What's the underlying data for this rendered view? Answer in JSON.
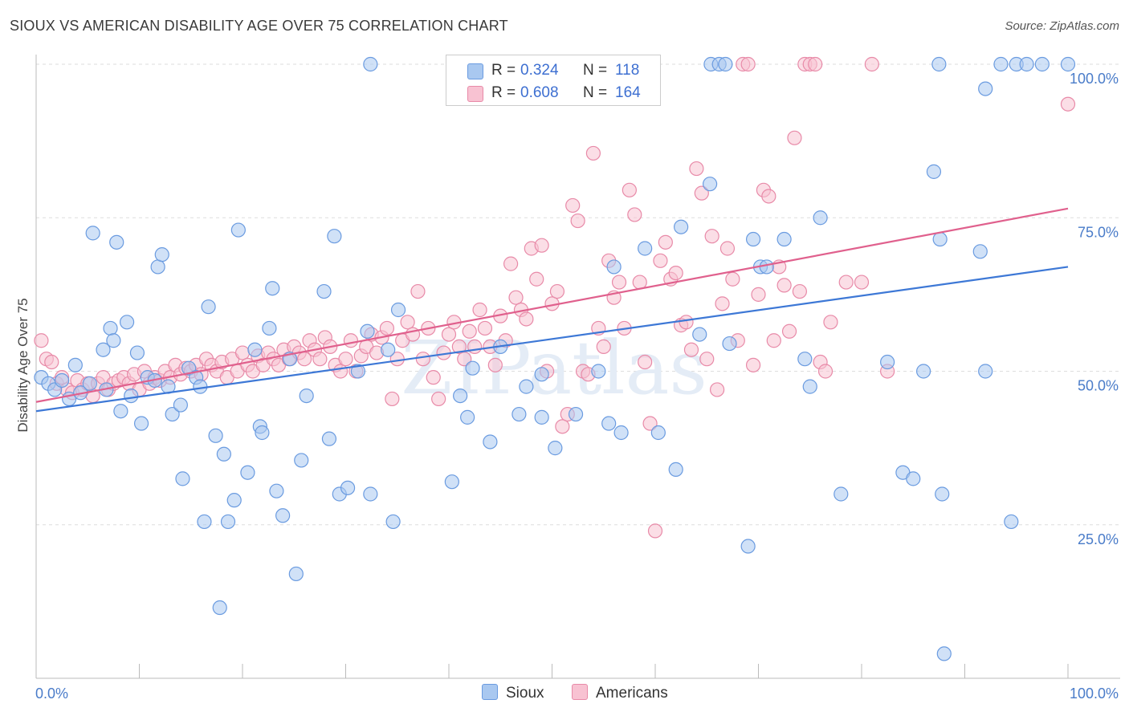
{
  "title": "SIOUX VS AMERICAN DISABILITY AGE OVER 75 CORRELATION CHART",
  "source": "Source: ZipAtlas.com",
  "watermark": "ZIPatlas",
  "legend": {
    "rows": [
      {
        "r_label": "R =",
        "r_value": "0.324",
        "n_label": "N =",
        "n_value": "118",
        "color": "#a9c8f0",
        "border": "#6a9be0"
      },
      {
        "r_label": "R =",
        "r_value": "0.608",
        "n_label": "N =",
        "n_value": "164",
        "color": "#f8c2d2",
        "border": "#e88aa8"
      }
    ],
    "bottom": [
      {
        "name": "Sioux",
        "color": "#a9c8f0",
        "border": "#6a9be0"
      },
      {
        "name": "Americans",
        "color": "#f8c2d2",
        "border": "#e88aa8"
      }
    ]
  },
  "chart_data": {
    "type": "scatter",
    "title": "SIOUX VS AMERICAN DISABILITY AGE OVER 75 CORRELATION CHART",
    "xlabel": "",
    "ylabel": "Disability Age Over 75",
    "xlim": [
      0,
      100
    ],
    "ylim": [
      0,
      100
    ],
    "x_tick_labels": [
      "0.0%",
      "100.0%"
    ],
    "y_tick_labels": [
      "25.0%",
      "50.0%",
      "75.0%",
      "100.0%"
    ],
    "y_ticks": [
      25,
      50,
      75,
      100
    ],
    "grid": true,
    "legend_position": "top-center",
    "series": [
      {
        "name": "Sioux",
        "color": "#6a9be0",
        "fill": "#a9c8f0",
        "trend": {
          "x": [
            0,
            100
          ],
          "y": [
            43.5,
            67.0
          ],
          "color": "#3d78d6"
        },
        "points": [
          [
            0.5,
            49
          ],
          [
            1.2,
            48
          ],
          [
            1.8,
            47
          ],
          [
            2.5,
            48.5
          ],
          [
            3.2,
            45.5
          ],
          [
            3.8,
            51
          ],
          [
            4.3,
            46.5
          ],
          [
            5.2,
            48
          ],
          [
            5.5,
            72.5
          ],
          [
            6.5,
            53.5
          ],
          [
            6.8,
            47
          ],
          [
            7.2,
            57
          ],
          [
            7.5,
            55
          ],
          [
            7.8,
            71
          ],
          [
            8.2,
            43.5
          ],
          [
            8.8,
            58
          ],
          [
            9.2,
            46
          ],
          [
            9.8,
            53
          ],
          [
            10.2,
            41.5
          ],
          [
            10.8,
            49
          ],
          [
            11.5,
            48.5
          ],
          [
            11.8,
            67
          ],
          [
            12.2,
            69
          ],
          [
            12.8,
            47.5
          ],
          [
            13.2,
            43
          ],
          [
            14.0,
            44.5
          ],
          [
            14.2,
            32.5
          ],
          [
            14.8,
            50.5
          ],
          [
            15.5,
            49
          ],
          [
            15.9,
            47.5
          ],
          [
            16.3,
            25.5
          ],
          [
            16.7,
            60.5
          ],
          [
            17.4,
            39.5
          ],
          [
            17.8,
            11.5
          ],
          [
            18.2,
            36.5
          ],
          [
            18.6,
            25.5
          ],
          [
            19.2,
            29
          ],
          [
            19.6,
            73
          ],
          [
            20.5,
            33.5
          ],
          [
            21.2,
            53.5
          ],
          [
            21.7,
            41
          ],
          [
            21.9,
            40
          ],
          [
            22.6,
            57
          ],
          [
            22.9,
            63.5
          ],
          [
            23.3,
            30.5
          ],
          [
            23.9,
            26.5
          ],
          [
            24.6,
            52
          ],
          [
            25.2,
            17
          ],
          [
            25.7,
            35.5
          ],
          [
            26.2,
            46
          ],
          [
            27.9,
            63
          ],
          [
            28.4,
            39
          ],
          [
            28.9,
            72
          ],
          [
            29.4,
            30
          ],
          [
            30.2,
            31
          ],
          [
            31.2,
            50
          ],
          [
            32.1,
            56.5
          ],
          [
            32.4,
            30
          ],
          [
            32.4,
            100
          ],
          [
            34.1,
            53.5
          ],
          [
            34.6,
            25.5
          ],
          [
            35.1,
            60
          ],
          [
            40.3,
            32
          ],
          [
            41.1,
            46
          ],
          [
            41.8,
            42.5
          ],
          [
            42.3,
            50.5
          ],
          [
            44.0,
            38.5
          ],
          [
            45.0,
            54
          ],
          [
            46.8,
            43
          ],
          [
            47.5,
            47.5
          ],
          [
            49.0,
            42.5
          ],
          [
            49.0,
            49.5
          ],
          [
            50.3,
            37.5
          ],
          [
            52.3,
            43
          ],
          [
            54.5,
            50
          ],
          [
            55.5,
            41.5
          ],
          [
            56.0,
            67
          ],
          [
            56.7,
            40
          ],
          [
            59.0,
            70
          ],
          [
            60.3,
            40
          ],
          [
            62.0,
            34
          ],
          [
            62.5,
            73.5
          ],
          [
            64.3,
            56
          ],
          [
            65.3,
            80.5
          ],
          [
            65.4,
            100
          ],
          [
            66.2,
            100
          ],
          [
            66.8,
            100
          ],
          [
            67.2,
            54.5
          ],
          [
            69.0,
            21.5
          ],
          [
            69.5,
            71.5
          ],
          [
            70.2,
            67
          ],
          [
            70.8,
            67
          ],
          [
            72.5,
            71.5
          ],
          [
            74.5,
            52
          ],
          [
            75.0,
            47.5
          ],
          [
            76.0,
            75
          ],
          [
            78.0,
            30
          ],
          [
            82.5,
            51.5
          ],
          [
            84.0,
            33.5
          ],
          [
            85.0,
            32.5
          ],
          [
            86.0,
            50
          ],
          [
            87.0,
            82.5
          ],
          [
            87.5,
            100
          ],
          [
            87.6,
            71.5
          ],
          [
            87.8,
            30
          ],
          [
            88.0,
            4
          ],
          [
            91.5,
            69.5
          ],
          [
            92.0,
            96
          ],
          [
            92.0,
            50
          ],
          [
            93.5,
            100
          ],
          [
            94.5,
            25.5
          ],
          [
            95.0,
            100
          ],
          [
            96.0,
            100
          ],
          [
            97.5,
            100
          ],
          [
            100.0,
            100
          ]
        ]
      },
      {
        "name": "Americans",
        "color": "#e88aa8",
        "fill": "#f8c2d2",
        "trend": {
          "x": [
            0,
            100
          ],
          "y": [
            45.0,
            76.5
          ],
          "color": "#e0608d"
        },
        "points": [
          [
            0.5,
            55
          ],
          [
            1.0,
            52
          ],
          [
            1.5,
            51.5
          ],
          [
            2.0,
            48
          ],
          [
            2.5,
            49
          ],
          [
            3.0,
            47
          ],
          [
            3.5,
            46.5
          ],
          [
            4.0,
            48.5
          ],
          [
            4.5,
            47
          ],
          [
            5.0,
            48
          ],
          [
            5.5,
            46
          ],
          [
            6.0,
            48
          ],
          [
            6.5,
            49
          ],
          [
            7.0,
            47
          ],
          [
            7.5,
            48
          ],
          [
            8.0,
            48.5
          ],
          [
            8.5,
            49
          ],
          [
            9.0,
            48
          ],
          [
            9.5,
            49.5
          ],
          [
            10.0,
            47
          ],
          [
            10.5,
            50
          ],
          [
            11.0,
            48
          ],
          [
            11.5,
            49
          ],
          [
            12.0,
            48.5
          ],
          [
            12.5,
            50
          ],
          [
            13.0,
            49
          ],
          [
            13.5,
            51
          ],
          [
            14.0,
            49.5
          ],
          [
            14.5,
            50.5
          ],
          [
            15.0,
            50
          ],
          [
            15.5,
            51
          ],
          [
            16.0,
            49.5
          ],
          [
            16.5,
            52
          ],
          [
            17.0,
            51
          ],
          [
            17.5,
            50
          ],
          [
            18.0,
            51.5
          ],
          [
            18.5,
            49
          ],
          [
            19.0,
            52
          ],
          [
            19.5,
            50
          ],
          [
            20.0,
            53
          ],
          [
            20.5,
            51
          ],
          [
            21.0,
            50
          ],
          [
            21.5,
            52.5
          ],
          [
            22.0,
            51
          ],
          [
            22.5,
            53
          ],
          [
            23.0,
            52
          ],
          [
            23.5,
            51
          ],
          [
            24.0,
            53.5
          ],
          [
            24.5,
            52
          ],
          [
            25.0,
            54
          ],
          [
            25.5,
            53
          ],
          [
            26.0,
            52
          ],
          [
            26.5,
            55
          ],
          [
            27.0,
            53.5
          ],
          [
            27.5,
            52
          ],
          [
            28.0,
            55.5
          ],
          [
            28.5,
            54
          ],
          [
            29.0,
            51
          ],
          [
            29.5,
            50
          ],
          [
            30.0,
            52
          ],
          [
            30.5,
            55
          ],
          [
            31.0,
            50
          ],
          [
            31.5,
            52.5
          ],
          [
            32.0,
            54
          ],
          [
            32.5,
            56
          ],
          [
            33.0,
            53
          ],
          [
            33.5,
            55.5
          ],
          [
            34.0,
            57
          ],
          [
            34.5,
            45.5
          ],
          [
            35.0,
            52
          ],
          [
            35.5,
            55
          ],
          [
            36.0,
            58
          ],
          [
            36.5,
            56
          ],
          [
            37.0,
            63
          ],
          [
            37.5,
            52
          ],
          [
            38.0,
            57
          ],
          [
            38.5,
            49
          ],
          [
            39.0,
            45.5
          ],
          [
            39.5,
            53
          ],
          [
            40.0,
            56
          ],
          [
            40.5,
            58
          ],
          [
            41.0,
            54
          ],
          [
            41.5,
            52
          ],
          [
            42.0,
            56.5
          ],
          [
            42.5,
            54
          ],
          [
            43.0,
            60
          ],
          [
            43.5,
            57
          ],
          [
            44.0,
            54
          ],
          [
            44.5,
            51
          ],
          [
            45.0,
            59
          ],
          [
            45.5,
            55
          ],
          [
            46.0,
            67.5
          ],
          [
            46.5,
            62
          ],
          [
            47.0,
            60
          ],
          [
            47.5,
            58.5
          ],
          [
            48.0,
            70
          ],
          [
            48.5,
            65
          ],
          [
            49.0,
            70.5
          ],
          [
            49.5,
            50
          ],
          [
            50.0,
            61
          ],
          [
            50.5,
            63
          ],
          [
            51.0,
            41
          ],
          [
            51.5,
            43
          ],
          [
            52.0,
            77
          ],
          [
            52.5,
            74.5
          ],
          [
            53.0,
            50
          ],
          [
            53.5,
            49.5
          ],
          [
            54.0,
            85.5
          ],
          [
            54.5,
            57
          ],
          [
            55.0,
            54
          ],
          [
            55.5,
            68
          ],
          [
            56.0,
            62
          ],
          [
            56.5,
            64.5
          ],
          [
            57.0,
            57
          ],
          [
            57.5,
            79.5
          ],
          [
            58.0,
            75.5
          ],
          [
            58.5,
            64.5
          ],
          [
            59.0,
            51.5
          ],
          [
            59.5,
            41.5
          ],
          [
            60.0,
            24
          ],
          [
            60.5,
            68
          ],
          [
            61.0,
            71
          ],
          [
            61.5,
            65
          ],
          [
            62.0,
            66
          ],
          [
            62.5,
            57.5
          ],
          [
            63.0,
            58
          ],
          [
            63.5,
            53.5
          ],
          [
            64.0,
            83
          ],
          [
            64.5,
            79
          ],
          [
            65.0,
            52
          ],
          [
            65.5,
            72
          ],
          [
            66.0,
            47
          ],
          [
            66.5,
            61
          ],
          [
            67.0,
            70
          ],
          [
            67.5,
            65
          ],
          [
            68.0,
            55
          ],
          [
            68.5,
            100
          ],
          [
            69.0,
            100
          ],
          [
            69.5,
            51
          ],
          [
            70.0,
            62.5
          ],
          [
            70.5,
            79.5
          ],
          [
            71.0,
            78.5
          ],
          [
            71.5,
            55
          ],
          [
            72.0,
            67
          ],
          [
            72.5,
            64
          ],
          [
            73.0,
            56.5
          ],
          [
            73.5,
            88
          ],
          [
            74.0,
            63
          ],
          [
            74.5,
            100
          ],
          [
            75.0,
            100
          ],
          [
            75.5,
            100
          ],
          [
            76.0,
            51.5
          ],
          [
            76.5,
            50
          ],
          [
            77.0,
            58
          ],
          [
            78.5,
            64.5
          ],
          [
            80.0,
            64.5
          ],
          [
            81.0,
            100
          ],
          [
            82.5,
            50
          ],
          [
            100.0,
            93.5
          ]
        ]
      }
    ]
  }
}
